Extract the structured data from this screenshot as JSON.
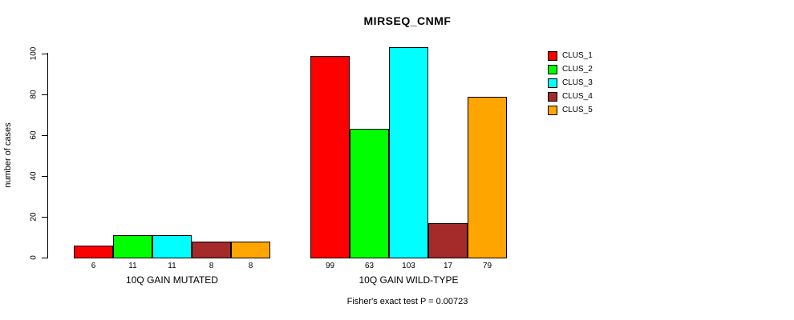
{
  "chart_data": {
    "type": "bar",
    "title": "MIRSEQ_CNMF",
    "ylabel": "number of cases",
    "xlabel": "",
    "ylim": [
      0,
      100
    ],
    "yticks": [
      0,
      20,
      40,
      60,
      80,
      100
    ],
    "categories": [
      "10Q GAIN MUTATED",
      "10Q GAIN WILD-TYPE"
    ],
    "series": [
      {
        "name": "CLUS_1",
        "color": "#ff0000",
        "values": [
          6,
          99
        ]
      },
      {
        "name": "CLUS_2",
        "color": "#00ff00",
        "values": [
          11,
          63
        ]
      },
      {
        "name": "CLUS_3",
        "color": "#00ffff",
        "values": [
          11,
          103
        ]
      },
      {
        "name": "CLUS_4",
        "color": "#a52a2a",
        "values": [
          8,
          17
        ]
      },
      {
        "name": "CLUS_5",
        "color": "#ffa500",
        "values": [
          8,
          79
        ]
      }
    ],
    "bar_value_labels_shown": true,
    "legend_position": "right",
    "grid": false,
    "annotation": "Fisher's exact test P = 0.00723"
  }
}
